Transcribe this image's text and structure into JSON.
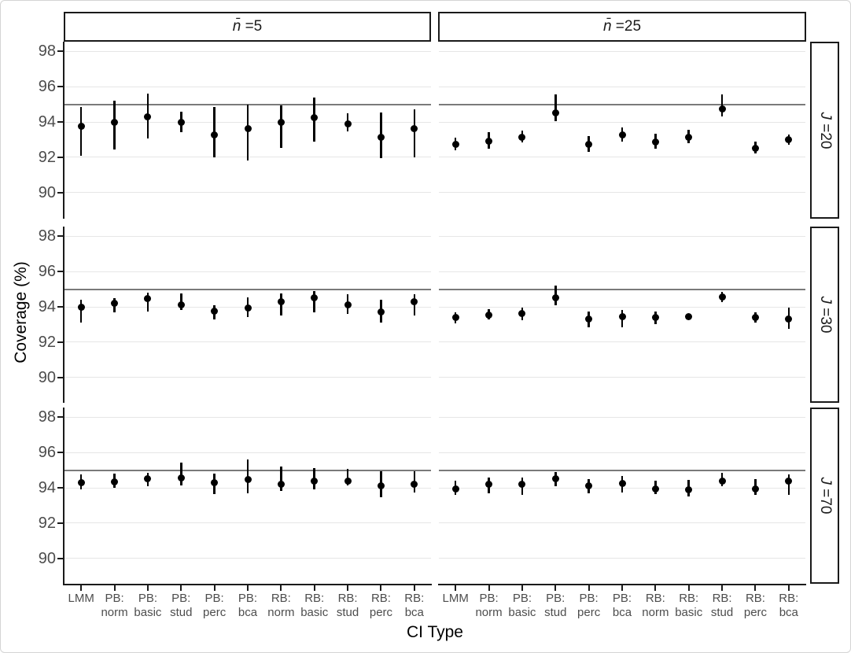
{
  "figure_type": "faceted-pointrange-plot",
  "chart_data": {
    "type": "scatter",
    "subtype": "pointrange-with-error-bars",
    "title": "",
    "xlabel": "CI Type",
    "ylabel": "Coverage (%)",
    "x_categories": [
      "LMM",
      "PB: norm",
      "PB: basic",
      "PB: stud",
      "PB: perc",
      "PB: bca",
      "RB: norm",
      "RB: basic",
      "RB: stud",
      "RB: perc",
      "RB: bca"
    ],
    "col_facets": [
      {
        "var": "n̄",
        "eq": " =5"
      },
      {
        "var": "n̄",
        "eq": " =25"
      }
    ],
    "row_facets": [
      {
        "var": "J",
        "eq": " =20"
      },
      {
        "var": "J",
        "eq": " =30"
      },
      {
        "var": "J",
        "eq": " =70"
      }
    ],
    "y_ticks": [
      98,
      96,
      94,
      92,
      90
    ],
    "ylim": [
      88.5,
      98.55
    ],
    "reference_line": 95,
    "grid": "horizontal-major-only",
    "legend": "none",
    "panels": [
      {
        "col_facet": "n̄ =5",
        "row_facet": "J =20",
        "estimate": [
          93.75,
          94.0,
          94.3,
          94.0,
          93.25,
          93.6,
          94.0,
          94.25,
          93.9,
          93.15,
          93.6
        ],
        "lower": [
          92.1,
          92.45,
          93.05,
          93.4,
          92.0,
          91.8,
          92.55,
          92.9,
          93.45,
          91.95,
          92.0
        ],
        "upper": [
          94.85,
          95.2,
          95.6,
          94.6,
          94.85,
          95.0,
          94.95,
          95.4,
          94.5,
          94.55,
          94.7
        ]
      },
      {
        "col_facet": "n̄ =25",
        "row_facet": "J =20",
        "estimate": [
          92.75,
          92.9,
          93.15,
          94.5,
          92.75,
          93.25,
          92.85,
          93.15,
          94.75,
          92.5,
          93.0
        ],
        "lower": [
          92.4,
          92.5,
          92.85,
          94.05,
          92.3,
          92.9,
          92.5,
          92.8,
          94.3,
          92.2,
          92.7
        ],
        "upper": [
          93.1,
          93.4,
          93.5,
          95.55,
          93.2,
          93.7,
          93.35,
          93.55,
          95.55,
          92.9,
          93.3
        ]
      },
      {
        "col_facet": "n̄ =5",
        "row_facet": "J =30",
        "estimate": [
          94.0,
          94.2,
          94.45,
          94.1,
          93.75,
          93.95,
          94.3,
          94.5,
          94.1,
          93.7,
          94.3
        ],
        "lower": [
          93.1,
          93.7,
          93.75,
          93.8,
          93.3,
          93.4,
          93.5,
          93.7,
          93.6,
          93.1,
          93.5
        ],
        "upper": [
          94.4,
          94.5,
          94.8,
          94.75,
          94.1,
          94.55,
          94.75,
          94.9,
          94.7,
          94.4,
          94.7
        ]
      },
      {
        "col_facet": "n̄ =25",
        "row_facet": "J =30",
        "estimate": [
          93.4,
          93.55,
          93.6,
          94.5,
          93.3,
          93.45,
          93.4,
          93.45,
          94.55,
          93.4,
          93.3
        ],
        "lower": [
          93.05,
          93.3,
          93.25,
          94.1,
          92.85,
          92.85,
          93.0,
          93.3,
          94.25,
          93.1,
          92.75
        ],
        "upper": [
          93.7,
          93.85,
          93.95,
          95.2,
          93.75,
          93.8,
          93.75,
          93.6,
          94.85,
          93.7,
          93.95
        ]
      },
      {
        "col_facet": "n̄ =5",
        "row_facet": "J =70",
        "estimate": [
          94.3,
          94.35,
          94.5,
          94.55,
          94.3,
          94.45,
          94.2,
          94.4,
          94.4,
          94.1,
          94.2
        ],
        "lower": [
          93.9,
          94.0,
          94.1,
          94.15,
          93.65,
          93.7,
          93.8,
          93.9,
          94.15,
          93.45,
          93.75
        ],
        "upper": [
          94.75,
          94.8,
          94.85,
          95.45,
          94.8,
          95.6,
          95.2,
          95.1,
          95.05,
          94.95,
          94.95
        ]
      },
      {
        "col_facet": "n̄ =25",
        "row_facet": "J =70",
        "estimate": [
          93.95,
          94.2,
          94.2,
          94.5,
          94.1,
          94.25,
          93.95,
          93.9,
          94.4,
          93.95,
          94.4
        ],
        "lower": [
          93.6,
          93.7,
          93.6,
          94.1,
          93.7,
          93.75,
          93.65,
          93.5,
          94.1,
          93.6,
          93.6
        ],
        "upper": [
          94.4,
          94.6,
          94.6,
          94.9,
          94.5,
          94.65,
          94.4,
          94.45,
          94.85,
          94.5,
          94.75
        ]
      }
    ]
  },
  "colors": {
    "point": "#000000",
    "reference_line": "#7a7a7a",
    "gridline": "#e6e6e6",
    "axis_line": "#1a1a1a",
    "tick_label": "#4d4d4d",
    "axis_title": "#000000",
    "strip_border": "#1a1a1a",
    "strip_background": "#ffffff",
    "panel_background": "#ffffff"
  }
}
